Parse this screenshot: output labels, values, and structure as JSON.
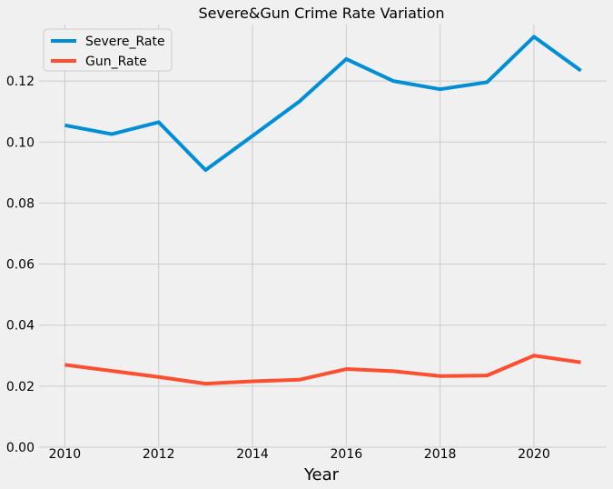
{
  "chart_data": {
    "type": "line",
    "title": "Severe&Gun Crime Rate Variation",
    "xlabel": "Year",
    "ylabel": "",
    "x": [
      2010,
      2011,
      2012,
      2013,
      2014,
      2015,
      2016,
      2017,
      2018,
      2019,
      2020,
      2021
    ],
    "xlim": [
      2009.45,
      2021.55
    ],
    "ylim": [
      0.0,
      0.1385
    ],
    "xticks": [
      2010,
      2012,
      2014,
      2016,
      2018,
      2020
    ],
    "yticks": [
      0.0,
      0.02,
      0.04,
      0.06,
      0.08,
      0.1,
      0.12
    ],
    "ytick_labels": [
      "0.00",
      "0.02",
      "0.04",
      "0.06",
      "0.08",
      "0.10",
      "0.12"
    ],
    "grid": true,
    "legend_position": "top-left",
    "series": [
      {
        "name": "Severe_Rate",
        "color": "#008fd5",
        "values": [
          0.1055,
          0.1026,
          0.1065,
          0.0908,
          0.102,
          0.1133,
          0.1272,
          0.12,
          0.1173,
          0.1196,
          0.1345,
          0.1234
        ]
      },
      {
        "name": "Gun_Rate",
        "color": "#fc4f30",
        "values": [
          0.027,
          0.025,
          0.023,
          0.0208,
          0.0216,
          0.0221,
          0.0256,
          0.0249,
          0.0233,
          0.0235,
          0.03,
          0.0278
        ]
      }
    ]
  }
}
